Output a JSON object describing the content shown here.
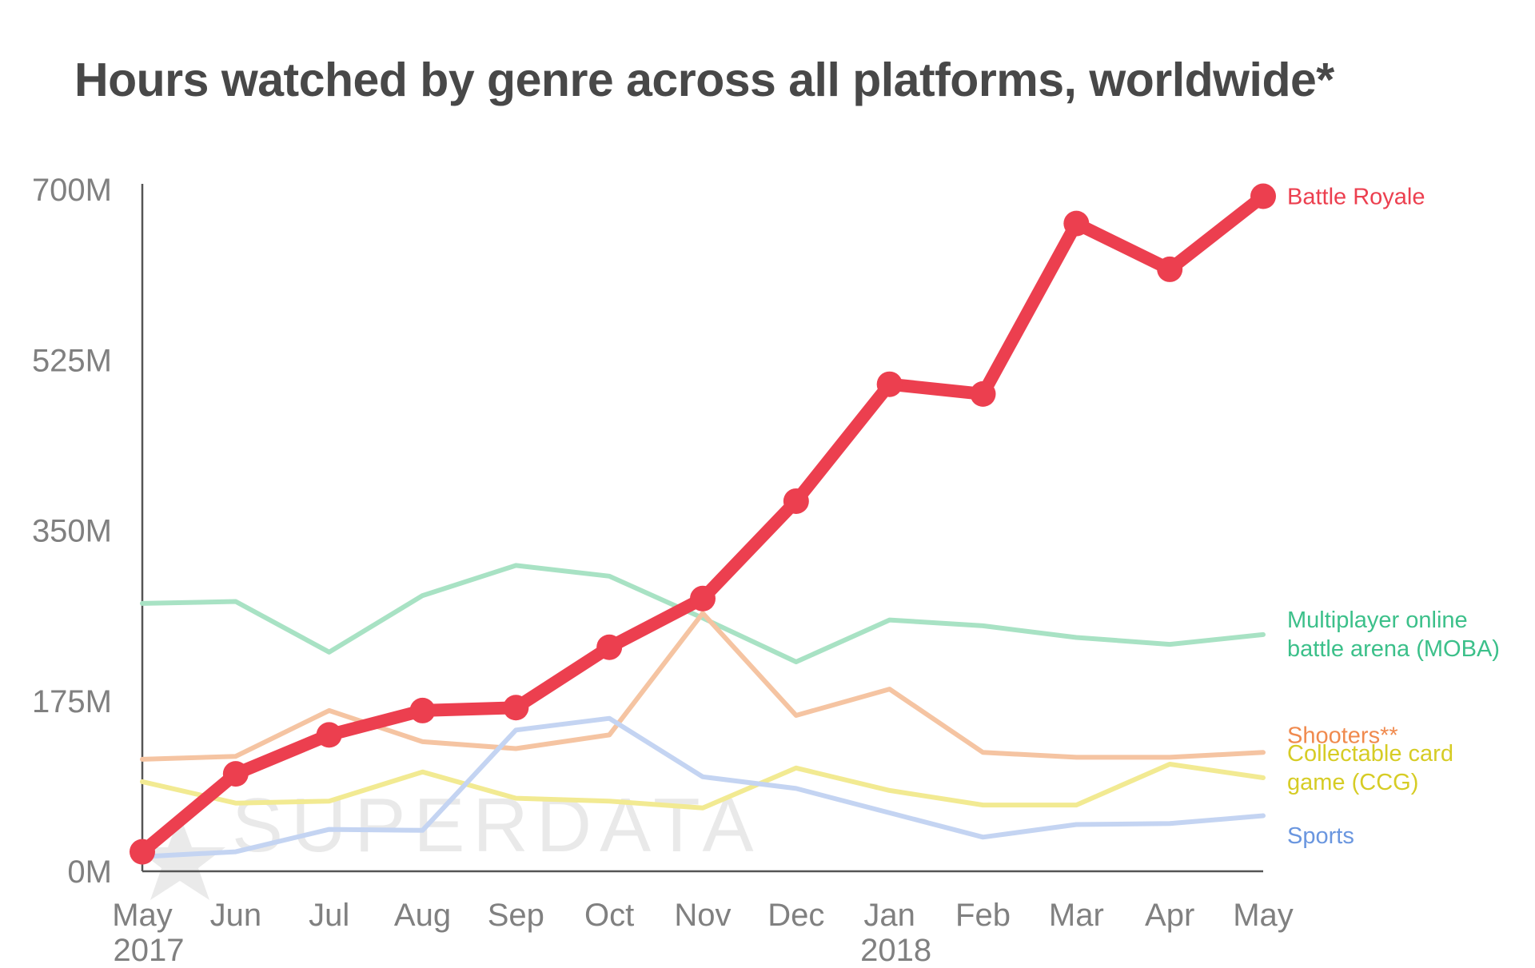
{
  "title": "Hours watched by genre across all platforms, worldwide*",
  "watermark": "SUPERDATA",
  "chart_data": {
    "type": "line",
    "title": "Hours watched by genre across all platforms, worldwide*",
    "x": [
      "May",
      "Jun",
      "Jul",
      "Aug",
      "Sep",
      "Oct",
      "Nov",
      "Dec",
      "Jan",
      "Feb",
      "Mar",
      "Apr",
      "May"
    ],
    "x_year_labels": [
      {
        "index": 0,
        "label": "2017"
      },
      {
        "index": 8,
        "label": "2018"
      }
    ],
    "ylim": [
      0,
      700
    ],
    "y_ticks": [
      0,
      175,
      350,
      525,
      700
    ],
    "y_tick_labels": [
      "0M",
      "175M",
      "350M",
      "525M",
      "700M"
    ],
    "grid": false,
    "legend": "right, inline labels",
    "series": [
      {
        "name": "Multiplayer online battle arena (MOBA)",
        "label_lines": [
          "Multiplayer online",
          "battle arena (MOBA)"
        ],
        "color": "#a8e2c4",
        "label_color": "#3cc08a",
        "width": 6,
        "markers": false,
        "label_y": 242,
        "values": [
          275,
          277,
          225,
          283,
          314,
          303,
          260,
          215,
          258,
          252,
          240,
          233,
          243
        ]
      },
      {
        "name": "Shooters**",
        "label_lines": [
          "Shooters**"
        ],
        "color": "#f5c4a2",
        "label_color": "#f08a4e",
        "width": 6,
        "markers": false,
        "label_y": 140,
        "values": [
          115,
          118,
          165,
          133,
          126,
          140,
          265,
          160,
          187,
          122,
          117,
          117,
          122
        ]
      },
      {
        "name": "Collectable card game (CCG)",
        "label_lines": [
          "Collectable card",
          "game (CCG)"
        ],
        "color": "#f2ea92",
        "label_color": "#d6cc25",
        "width": 6,
        "markers": false,
        "label_y": 105,
        "values": [
          92,
          70,
          72,
          102,
          75,
          72,
          65,
          106,
          83,
          68,
          68,
          110,
          96
        ]
      },
      {
        "name": "Sports",
        "label_lines": [
          "Sports"
        ],
        "color": "#c4d4f2",
        "label_color": "#6a96df",
        "width": 6,
        "markers": false,
        "label_y": 37,
        "values": [
          15,
          20,
          43,
          42,
          145,
          157,
          97,
          85,
          60,
          35,
          48,
          49,
          57
        ]
      },
      {
        "name": "Battle Royale",
        "label_lines": [
          "Battle Royale"
        ],
        "color": "#ec3f4f",
        "label_color": "#ec3f4f",
        "width": 16,
        "markers": true,
        "label_y": 693,
        "values": [
          20,
          100,
          140,
          165,
          168,
          230,
          280,
          380,
          500,
          490,
          665,
          618,
          693
        ]
      }
    ]
  }
}
